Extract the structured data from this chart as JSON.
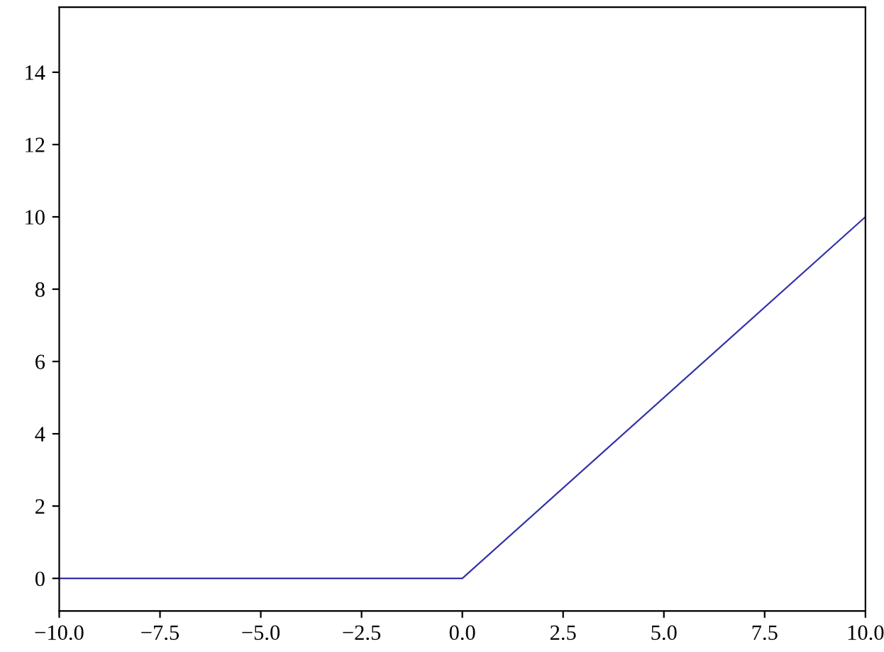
{
  "chart_data": {
    "type": "line",
    "x": [
      -10,
      0,
      10
    ],
    "series": [
      {
        "color": "#3333aa",
        "values": [
          0,
          0,
          10
        ]
      }
    ],
    "xlim": [
      -10,
      10
    ],
    "ylim": [
      -0.9,
      15.8
    ],
    "xticks": [
      {
        "value": -10,
        "label": "−10.0"
      },
      {
        "value": -7.5,
        "label": "−7.5"
      },
      {
        "value": -5,
        "label": "−5.0"
      },
      {
        "value": -2.5,
        "label": "−2.5"
      },
      {
        "value": 0,
        "label": "0.0"
      },
      {
        "value": 2.5,
        "label": "2.5"
      },
      {
        "value": 5,
        "label": "5.0"
      },
      {
        "value": 7.5,
        "label": "7.5"
      },
      {
        "value": 10,
        "label": "10.0"
      }
    ],
    "yticks": [
      0,
      2,
      4,
      6,
      8,
      10,
      12,
      14
    ],
    "grid": false,
    "legend": false,
    "marker": "none",
    "line_style": "solid"
  }
}
